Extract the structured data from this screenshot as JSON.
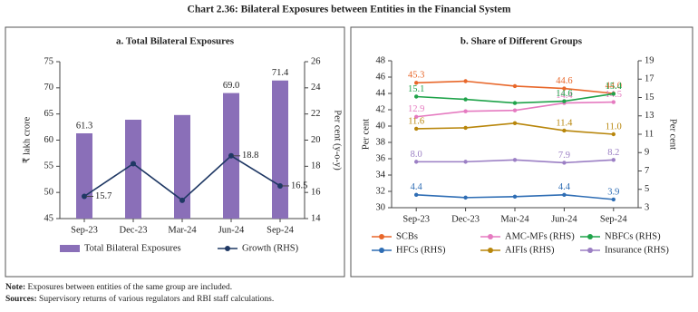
{
  "title": "Chart 2.36: Bilateral Exposures between Entities in the Financial System",
  "chart_data": [
    {
      "type": "combo",
      "title": "a. Total Bilateral Exposures",
      "categories": [
        "Sep-23",
        "Dec-23",
        "Mar-24",
        "Jun-24",
        "Sep-24"
      ],
      "ylabel": "₹ lakh crore",
      "y2label": "Per cent (y-o-y)",
      "ylim": [
        45,
        75
      ],
      "yticks": [
        45,
        50,
        55,
        60,
        65,
        70,
        75
      ],
      "y2lim": [
        14,
        26
      ],
      "y2ticks": [
        14,
        16,
        18,
        20,
        22,
        24,
        26
      ],
      "series": [
        {
          "name": "Total Bilateral Exposures",
          "type": "bar",
          "color": "#8a6fb8",
          "values": [
            61.3,
            63.9,
            64.8,
            69.0,
            71.4
          ],
          "value_labels": [
            "61.3",
            null,
            null,
            "69.0",
            "71.4"
          ]
        },
        {
          "name": "Growth (RHS)",
          "type": "line",
          "axis": "y2",
          "color": "#1f3864",
          "values": [
            15.7,
            18.2,
            15.4,
            18.8,
            16.5
          ],
          "value_labels": [
            "15.7",
            null,
            null,
            "18.8",
            "16.5"
          ]
        }
      ]
    },
    {
      "type": "line",
      "title": "b. Share of Different Groups",
      "categories": [
        "Sep-23",
        "Dec-23",
        "Mar-24",
        "Jun-24",
        "Sep-24"
      ],
      "ylabel": "Per cent",
      "y2label": "Per cent",
      "ylim": [
        30,
        48
      ],
      "yticks": [
        30,
        32,
        34,
        36,
        38,
        40,
        42,
        44,
        46,
        48
      ],
      "y2lim": [
        3,
        19
      ],
      "y2ticks": [
        3,
        5,
        7,
        9,
        11,
        13,
        15,
        17,
        19
      ],
      "series": [
        {
          "name": "SCBs",
          "color": "#e8672a",
          "values": [
            45.3,
            45.5,
            44.9,
            44.6,
            44.0
          ],
          "value_labels": [
            "45.3",
            null,
            null,
            "44.6",
            "44.0"
          ]
        },
        {
          "name": "AMC-MFs (RHS)",
          "axis": "y2",
          "color": "#e57ac0",
          "values": [
            12.9,
            13.5,
            13.6,
            14.4,
            14.5
          ],
          "value_labels": [
            "12.9",
            null,
            null,
            "14.4",
            "14.5"
          ]
        },
        {
          "name": "NBFCs (RHS)",
          "axis": "y2",
          "color": "#1fa34a",
          "values": [
            15.1,
            14.8,
            14.4,
            14.6,
            15.4
          ],
          "value_labels": [
            "15.1",
            null,
            null,
            "14.6",
            "15.4"
          ]
        },
        {
          "name": "HFCs (RHS)",
          "axis": "y2",
          "color": "#2e6db4",
          "values": [
            4.4,
            4.1,
            4.2,
            4.4,
            3.9
          ],
          "value_labels": [
            "4.4",
            null,
            null,
            "4.4",
            "3.9"
          ]
        },
        {
          "name": "AIFIs (RHS)",
          "axis": "y2",
          "color": "#b8860b",
          "values": [
            11.6,
            11.7,
            12.2,
            11.4,
            11.0
          ],
          "value_labels": [
            "11.6",
            null,
            null,
            "11.4",
            "11.0"
          ]
        },
        {
          "name": "Insurance (RHS)",
          "axis": "y2",
          "color": "#9b7fc4",
          "values": [
            8.0,
            8.0,
            8.2,
            7.9,
            8.2
          ],
          "value_labels": [
            "8.0",
            null,
            null,
            "7.9",
            "8.2"
          ]
        }
      ]
    }
  ],
  "notes": [
    {
      "label": "Note:",
      "text": "Exposures between entities of the same group are included."
    },
    {
      "label": "Sources:",
      "text": "Supervisory returns of various regulators and RBI staff calculations."
    }
  ]
}
